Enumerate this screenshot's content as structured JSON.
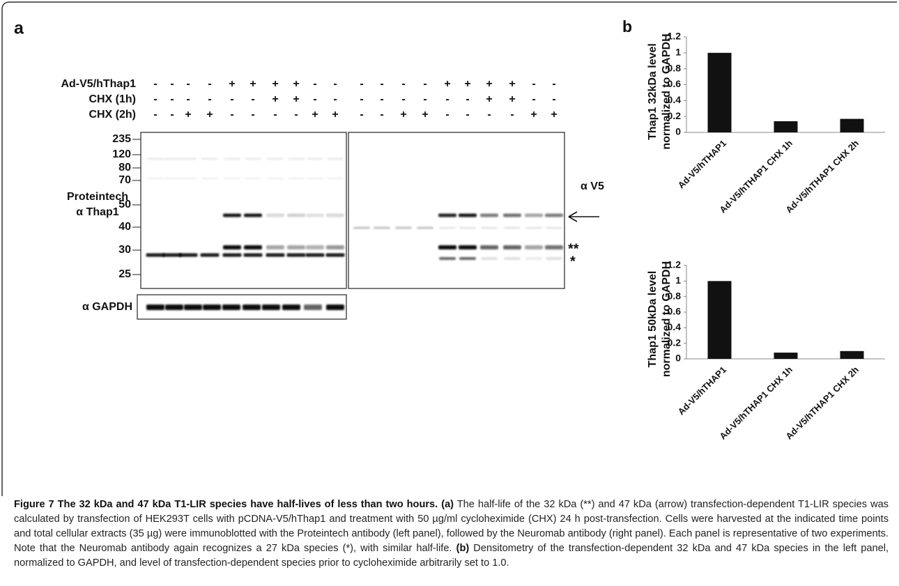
{
  "panel_a": {
    "label": "a",
    "conditions": [
      {
        "name": "Ad-V5/hThap1",
        "lanes": [
          "-",
          "-",
          "-",
          "-",
          "+",
          "+",
          "+",
          "+",
          "-",
          "-",
          "-",
          "-",
          "-",
          "-",
          "+",
          "+",
          "+",
          "+",
          "-",
          "-"
        ]
      },
      {
        "name": "CHX (1h)",
        "lanes": [
          "-",
          "-",
          "-",
          "-",
          "-",
          "-",
          "+",
          "+",
          "-",
          "-",
          "-",
          "-",
          "-",
          "-",
          "-",
          "-",
          "+",
          "+",
          "-",
          "-"
        ]
      },
      {
        "name": "CHX (2h)",
        "lanes": [
          "-",
          "-",
          "+",
          "+",
          "-",
          "-",
          "-",
          "-",
          "+",
          "+",
          "-",
          "-",
          "+",
          "+",
          "-",
          "-",
          "-",
          "-",
          "+",
          "+"
        ]
      }
    ],
    "markers": [
      "235",
      "120",
      "80",
      "70",
      "50",
      "40",
      "30",
      "25"
    ],
    "antibody_left": [
      "Proteintech",
      "α Thap1"
    ],
    "antibody_right": "α V5",
    "loading": "α GAPDH",
    "double_star": "**",
    "single_star": "*"
  },
  "panel_b_label": "b",
  "chart_data": [
    {
      "type": "bar",
      "y_label": [
        "Thap1 32kDa level",
        "normalized to GAPDH"
      ],
      "categories": [
        "Ad-V5/hTHAP1",
        "Ad-V5/hTHAP1 CHX 1h",
        "Ad-V5/hTHAP1 CHX 2h"
      ],
      "values": [
        1,
        0.14,
        0.17
      ],
      "color": "#111111",
      "ylim": [
        0,
        1.2
      ],
      "yticks": [
        0,
        0.2,
        0.4,
        0.6,
        0.8,
        1,
        1.2
      ],
      "grid": false
    },
    {
      "type": "bar",
      "y_label": [
        "Thap1 50kDa level",
        "normalized to GAPDH"
      ],
      "categories": [
        "Ad-V5/hTHAP1",
        "Ad-V5/hTHAP1 CHX 1h",
        "Ad-V5/hTHAP1 CHX 2h"
      ],
      "values": [
        1,
        0.08,
        0.1
      ],
      "color": "#111111",
      "ylim": [
        0,
        1.2
      ],
      "yticks": [
        0,
        0.2,
        0.4,
        0.6,
        0.8,
        1,
        1.2
      ],
      "grid": false
    }
  ],
  "caption": {
    "title": "Figure 7 The 32 kDa and 47 kDa T1-LIR species have half-lives of less than two hours.",
    "a_label": "(a)",
    "a_text": "The half-life of the 32 kDa (**) and 47 kDa (arrow) transfection-dependent T1-LIR species was calculated by transfection of HEK293T cells with pCDNA-V5/hThap1 and treatment with 50 µg/ml cycloheximide (CHX) 24 h post-transfection. Cells were harvested at the indicated time points and total cellular extracts (35 µg) were immunoblotted with the Proteintech antibody (left panel), followed by the Neuromab antibody (right panel). Each panel is representative of two experiments. Note that the Neuromab antibody again recognizes a 27 kDa species (*), with similar half-life.",
    "b_label": "(b)",
    "b_text": "Densitometry of the transfection-dependent 32 kDa and 47 kDa species in the left panel, normalized to GAPDH, and level of transfection-dependent species prior to cycloheximide arbitrarily set to 1.0."
  }
}
